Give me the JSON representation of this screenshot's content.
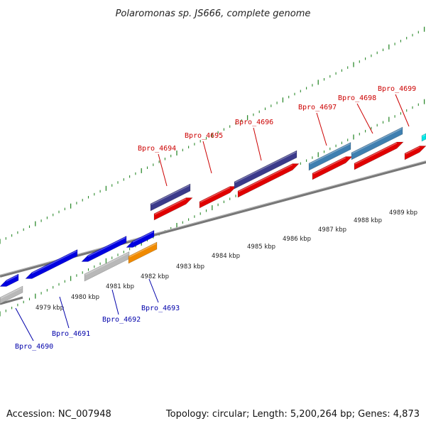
{
  "title": "Polaromonas sp. JS666, complete genome",
  "footer": {
    "accession": "Accession: NC_007948",
    "topology": "Topology: circular; Length: 5,200,264 bp; Genes: 4,873"
  },
  "colors": {
    "cds_forward": "#e00000",
    "cds_reverse": "#0000e0",
    "gene_purple": "#3b3a8a",
    "gene_steel": "#3f7fb0",
    "gene_gray": "#b8b8b8",
    "gene_orange": "#f08a00",
    "gene_cyan": "#00e5e5",
    "axis": "#777777",
    "ticks": "#2e8b2e",
    "label_top": "#cc0000",
    "label_bottom": "#0000aa"
  },
  "ruler": {
    "labels": [
      "4979 kbp",
      "4980 kbp",
      "4981 kbp",
      "4982 kbp",
      "4983 kbp",
      "4984 kbp",
      "4985 kbp",
      "4986 kbp",
      "4987 kbp",
      "4988 kbp",
      "4989 kbp"
    ]
  },
  "genes_top": [
    "Bpro_4694",
    "Bpro_4695",
    "Bpro_4696",
    "Bpro_4697",
    "Bpro_4698",
    "Bpro_4699"
  ],
  "genes_bottom": [
    "Bpro_4690",
    "Bpro_4691",
    "Bpro_4692",
    "Bpro_4693"
  ]
}
